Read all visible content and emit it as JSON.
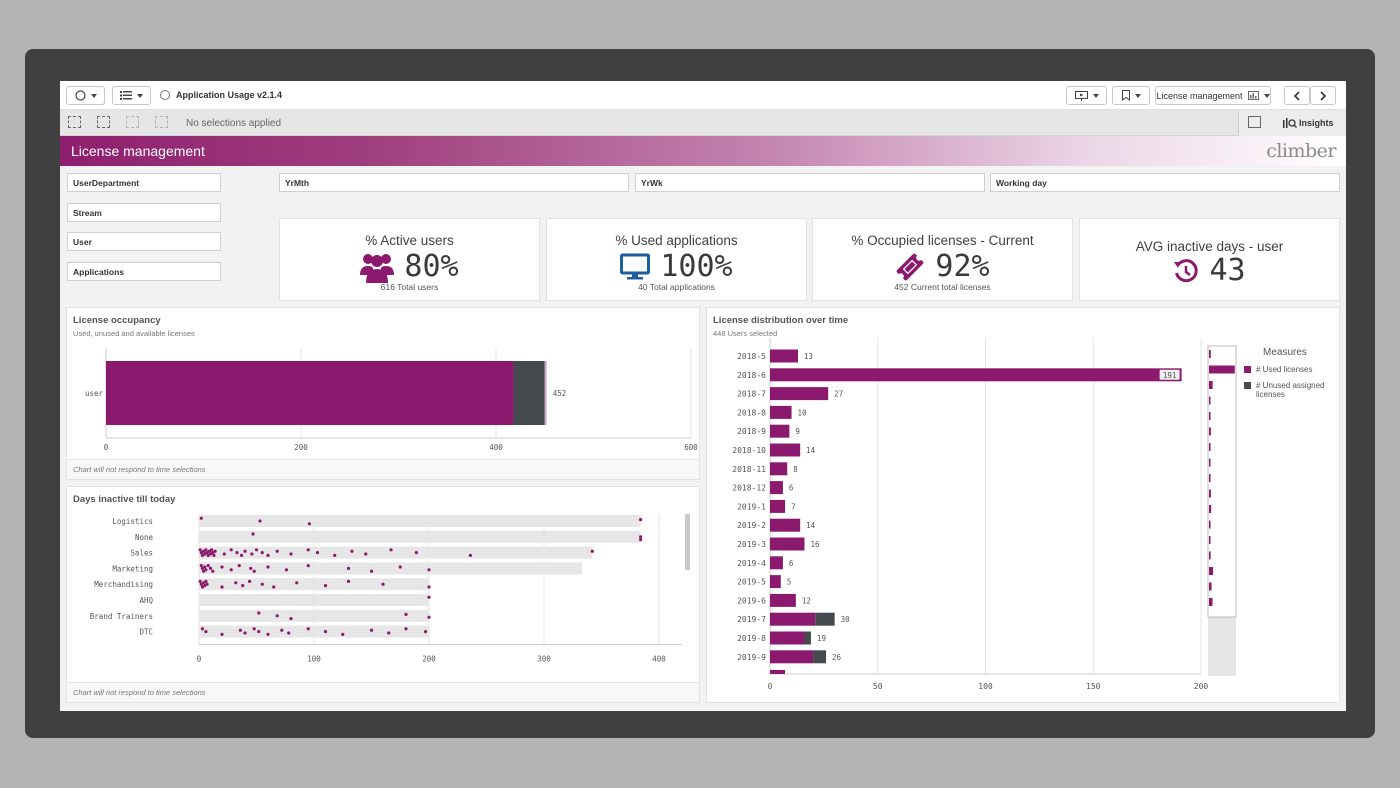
{
  "toolbar": {
    "app_title": "Application Usage v2.1.4",
    "sheet_selector": "License management",
    "selections_text": "No selections applied",
    "insights_label": "Insights"
  },
  "banner": {
    "title": "License management",
    "logo_text": "climber"
  },
  "filters": {
    "left": [
      "UserDepartment",
      "Stream",
      "User",
      "Applications"
    ],
    "top": [
      "YrMth",
      "YrWk",
      "Working day"
    ]
  },
  "kpis": [
    {
      "title": "% Active users",
      "value": "80%",
      "sub": "616 Total users",
      "icon": "users-icon"
    },
    {
      "title": "% Used applications",
      "value": "100%",
      "sub": "40 Total applications",
      "icon": "monitor-icon"
    },
    {
      "title": "% Occupied licenses - Current",
      "value": "92%",
      "sub": "452 Current total licenses",
      "icon": "ticket-icon"
    },
    {
      "title": "AVG inactive days - user",
      "value": "43",
      "icon": "history-icon"
    }
  ],
  "colors": {
    "accent": "#8b1a6f",
    "unused": "#454a4f",
    "bar_bg": "#e6e6e6"
  },
  "panels": {
    "occupancy": {
      "title": "License occupancy",
      "subtitle": "Used, unused and available licenses",
      "footer": "Chart will not respond to time selections"
    },
    "inactive": {
      "title": "Days inactive till today",
      "footer": "Chart will not respond to time selections"
    },
    "distribution": {
      "title": "License distribution over time",
      "subtitle": "448 Users selected",
      "legend_title": "Measures",
      "legend": [
        "# Used licenses",
        "# Unused assigned licenses"
      ]
    }
  },
  "chart_data": [
    {
      "type": "bar",
      "orientation": "horizontal",
      "stacked": true,
      "categories": [
        "user"
      ],
      "series": [
        {
          "name": "Used",
          "values": [
            418
          ]
        },
        {
          "name": "Unused",
          "values": [
            32
          ]
        },
        {
          "name": "Available",
          "values": [
            2
          ]
        }
      ],
      "total_label": "452",
      "xticks": [
        "0",
        "200",
        "400",
        "600"
      ],
      "xlim": [
        0,
        600
      ]
    },
    {
      "type": "scatter",
      "categories": [
        "Logistics",
        "None",
        "Sales",
        "Marketing",
        "Merchandising",
        "AHQ",
        "Brand Trainers",
        "DTC"
      ],
      "ranges": [
        [
          0,
          384
        ],
        [
          0,
          384
        ],
        [
          0,
          342
        ],
        [
          0,
          333
        ],
        [
          0,
          200
        ],
        [
          0,
          200
        ],
        [
          0,
          200
        ],
        [
          0,
          200
        ]
      ],
      "points": [
        [
          2,
          53,
          96,
          384
        ],
        [
          47,
          384,
          384
        ],
        [
          1,
          2,
          3,
          4,
          5,
          6,
          7,
          8,
          9,
          10,
          11,
          12,
          13,
          14,
          22,
          28,
          33,
          37,
          40,
          46,
          50,
          55,
          60,
          68,
          80,
          95,
          103,
          118,
          133,
          145,
          167,
          189,
          236,
          342
        ],
        [
          2,
          3,
          4,
          5,
          6,
          8,
          10,
          12,
          20,
          28,
          35,
          45,
          48,
          60,
          76,
          95,
          130,
          150,
          175,
          200
        ],
        [
          1,
          2,
          3,
          4,
          5,
          6,
          7,
          20,
          32,
          38,
          44,
          55,
          65,
          85,
          110,
          130,
          160,
          200
        ],
        [
          200
        ],
        [
          52,
          68,
          80,
          180,
          200
        ],
        [
          3,
          6,
          20,
          36,
          40,
          48,
          52,
          60,
          72,
          78,
          95,
          110,
          125,
          150,
          165,
          180,
          197
        ]
      ],
      "xticks": [
        "0",
        "100",
        "200",
        "300",
        "400"
      ],
      "xlim": [
        0,
        420
      ]
    },
    {
      "type": "bar",
      "orientation": "horizontal",
      "stacked": true,
      "categories": [
        "2018-5",
        "2018-6",
        "2018-7",
        "2018-8",
        "2018-9",
        "2018-10",
        "2018-11",
        "2018-12",
        "2019-1",
        "2019-2",
        "2019-3",
        "2019-4",
        "2019-5",
        "2019-6",
        "2019-7",
        "2019-8",
        "2019-9"
      ],
      "series": [
        {
          "name": "# Used licenses",
          "values": [
            13,
            191,
            27,
            10,
            9,
            14,
            8,
            6,
            7,
            14,
            16,
            6,
            5,
            12,
            21,
            16,
            20
          ]
        },
        {
          "name": "# Unused assigned licenses",
          "values": [
            0,
            0,
            0,
            0,
            0,
            0,
            0,
            0,
            0,
            0,
            0,
            0,
            0,
            0,
            9,
            3,
            6
          ]
        }
      ],
      "labels": [
        "13",
        "191",
        "27",
        "10",
        "9",
        "14",
        "8",
        "6",
        "7",
        "14",
        "16",
        "6",
        "5",
        "12",
        "30",
        "19",
        "26"
      ],
      "xticks": [
        "0",
        "50",
        "100",
        "150",
        "200"
      ],
      "xlim": [
        0,
        200
      ]
    }
  ]
}
